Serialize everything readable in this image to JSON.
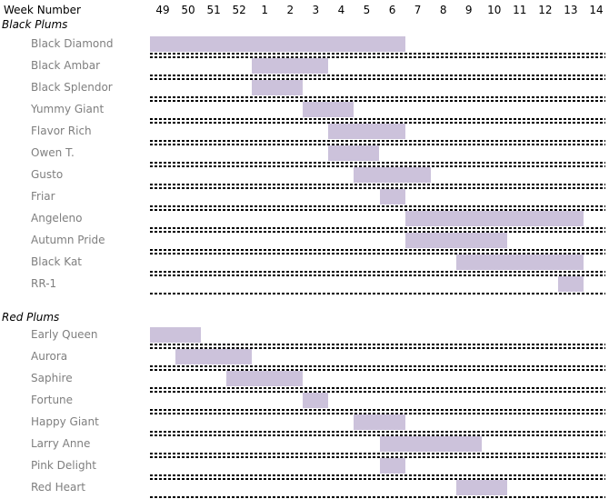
{
  "header": {
    "label": "Week Number"
  },
  "colors": {
    "bar_fill": "#CCC2DB",
    "row_label_text": "#7F7F7F",
    "heading_text": "#000000",
    "dotted_line": "#000000",
    "background": "#FFFFFF"
  },
  "chart_data": {
    "type": "bar",
    "subtype": "gantt-availability",
    "title": "",
    "xlabel": "Week Number",
    "ylabel": "",
    "grid": "dotted horizontal row separators only",
    "legend": "none",
    "x_ticks": [
      "49",
      "50",
      "51",
      "52",
      "1",
      "2",
      "3",
      "4",
      "5",
      "6",
      "7",
      "8",
      "9",
      "10",
      "11",
      "12",
      "13",
      "14"
    ],
    "bar_unit": "week",
    "groups": [
      {
        "name": "Black Plums",
        "rows": [
          {
            "label": "Black Diamond",
            "start_week": "49",
            "end_week": "6"
          },
          {
            "label": "Black Ambar",
            "start_week": "1",
            "end_week": "3"
          },
          {
            "label": "Black Splendor",
            "start_week": "1",
            "end_week": "2"
          },
          {
            "label": "Yummy Giant",
            "start_week": "3",
            "end_week": "4"
          },
          {
            "label": "Flavor Rich",
            "start_week": "4",
            "end_week": "6"
          },
          {
            "label": "Owen T.",
            "start_week": "4",
            "end_week": "5"
          },
          {
            "label": "Gusto",
            "start_week": "5",
            "end_week": "7"
          },
          {
            "label": "Friar",
            "start_week": "6",
            "end_week": "6"
          },
          {
            "label": "Angeleno",
            "start_week": "7",
            "end_week": "13"
          },
          {
            "label": "Autumn Pride",
            "start_week": "7",
            "end_week": "10"
          },
          {
            "label": "Black Kat",
            "start_week": "9",
            "end_week": "13"
          },
          {
            "label": "RR-1",
            "start_week": "13",
            "end_week": "13"
          }
        ]
      },
      {
        "name": "Red Plums",
        "rows": [
          {
            "label": "Early Queen",
            "start_week": "49",
            "end_week": "50"
          },
          {
            "label": "Aurora",
            "start_week": "50",
            "end_week": "52"
          },
          {
            "label": "Saphire",
            "start_week": "52",
            "end_week": "2"
          },
          {
            "label": "Fortune",
            "start_week": "3",
            "end_week": "3"
          },
          {
            "label": "Happy Giant",
            "start_week": "5",
            "end_week": "6"
          },
          {
            "label": "Larry Anne",
            "start_week": "6",
            "end_week": "9"
          },
          {
            "label": "Pink Delight",
            "start_week": "6",
            "end_week": "6"
          },
          {
            "label": "Red Heart",
            "start_week": "9",
            "end_week": "10"
          }
        ]
      }
    ]
  }
}
